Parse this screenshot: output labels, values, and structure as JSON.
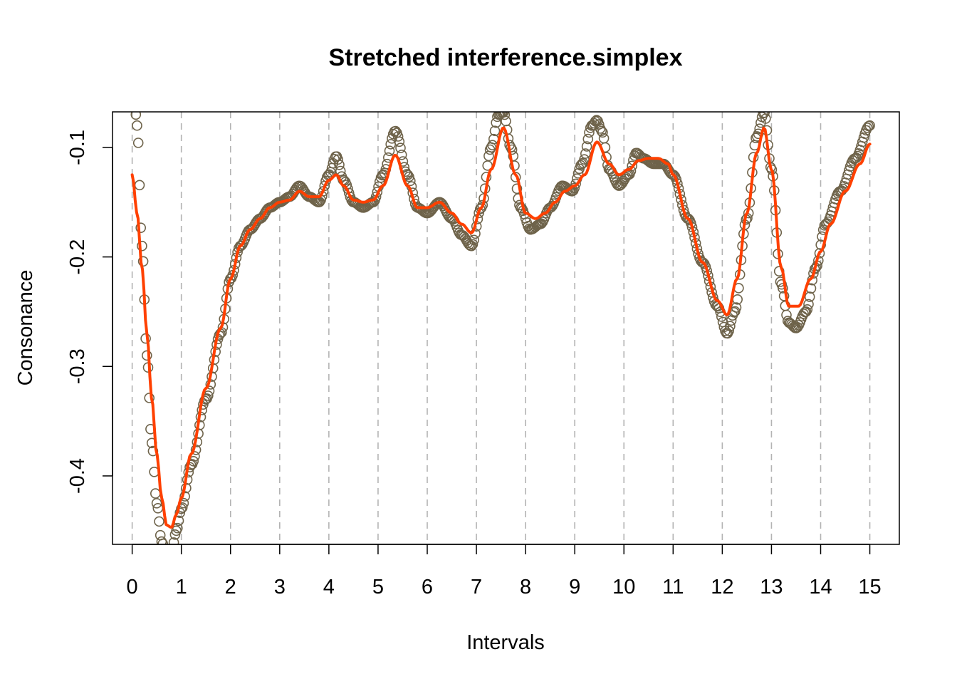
{
  "chart_data": {
    "type": "line",
    "title": "Stretched interference.simplex",
    "xlabel": "Intervals",
    "ylabel": "Consonance",
    "xlim": [
      -0.4,
      15.6
    ],
    "ylim": [
      -0.4625,
      -0.0675
    ],
    "x_ticks": [
      0,
      1,
      2,
      3,
      4,
      5,
      6,
      7,
      8,
      9,
      10,
      11,
      12,
      13,
      14,
      15
    ],
    "x_tick_labels": [
      "0",
      "1",
      "2",
      "3",
      "4",
      "5",
      "6",
      "7",
      "8",
      "9",
      "10",
      "11",
      "12",
      "13",
      "14",
      "15"
    ],
    "y_ticks": [
      -0.4,
      -0.3,
      -0.2,
      -0.1
    ],
    "y_tick_labels": [
      "-0.4",
      "-0.3",
      "-0.2",
      "-0.1"
    ],
    "vlines_at": [
      0,
      1,
      2,
      3,
      4,
      5,
      6,
      7,
      8,
      9,
      10,
      11,
      12,
      13,
      14,
      15
    ],
    "grid": false,
    "legend": "none",
    "colors": {
      "points": "#6e634a",
      "line": "#ff4000",
      "vlines": "#b3b3b3"
    },
    "series": [
      {
        "kind": "points",
        "x": [
          0.05,
          0.1,
          0.2,
          0.3,
          0.4,
          0.5,
          0.6,
          0.7,
          0.8,
          0.9,
          1.0,
          1.2,
          1.5,
          1.8,
          2.0,
          2.2,
          2.4,
          2.6,
          2.8,
          3.0,
          3.2,
          3.4,
          3.6,
          3.8,
          4.0,
          4.15,
          4.3,
          4.5,
          4.7,
          4.9,
          5.1,
          5.35,
          5.6,
          5.8,
          6.0,
          6.25,
          6.5,
          6.7,
          6.9,
          7.1,
          7.3,
          7.45,
          7.55,
          7.7,
          7.9,
          8.1,
          8.3,
          8.5,
          8.75,
          8.95,
          9.15,
          9.35,
          9.45,
          9.55,
          9.7,
          9.9,
          10.1,
          10.25,
          10.4,
          10.6,
          10.8,
          11.0,
          11.3,
          11.6,
          11.9,
          12.1,
          12.25,
          12.5,
          12.7,
          12.85,
          13.0,
          13.2,
          13.35,
          13.5,
          13.7,
          13.9,
          14.1,
          14.4,
          14.7,
          15.0
        ],
        "y": [
          -0.06,
          -0.08,
          -0.19,
          -0.29,
          -0.37,
          -0.425,
          -0.46,
          -0.475,
          -0.47,
          -0.45,
          -0.43,
          -0.39,
          -0.33,
          -0.27,
          -0.22,
          -0.19,
          -0.175,
          -0.165,
          -0.155,
          -0.15,
          -0.145,
          -0.135,
          -0.145,
          -0.15,
          -0.125,
          -0.108,
          -0.13,
          -0.15,
          -0.155,
          -0.15,
          -0.125,
          -0.085,
          -0.125,
          -0.155,
          -0.16,
          -0.15,
          -0.165,
          -0.18,
          -0.19,
          -0.155,
          -0.1,
          -0.07,
          -0.068,
          -0.1,
          -0.155,
          -0.175,
          -0.17,
          -0.155,
          -0.135,
          -0.14,
          -0.115,
          -0.08,
          -0.075,
          -0.085,
          -0.12,
          -0.135,
          -0.125,
          -0.105,
          -0.11,
          -0.115,
          -0.115,
          -0.125,
          -0.165,
          -0.205,
          -0.245,
          -0.27,
          -0.25,
          -0.165,
          -0.09,
          -0.068,
          -0.12,
          -0.225,
          -0.26,
          -0.265,
          -0.25,
          -0.21,
          -0.17,
          -0.14,
          -0.11,
          -0.08
        ]
      },
      {
        "kind": "line",
        "x": [
          0.0,
          0.1,
          0.2,
          0.3,
          0.4,
          0.5,
          0.6,
          0.7,
          0.8,
          0.9,
          1.0,
          1.2,
          1.5,
          1.8,
          2.0,
          2.2,
          2.4,
          2.6,
          2.8,
          3.0,
          3.2,
          3.4,
          3.6,
          3.8,
          4.0,
          4.15,
          4.3,
          4.5,
          4.7,
          4.9,
          5.1,
          5.35,
          5.6,
          5.8,
          6.0,
          6.25,
          6.5,
          6.7,
          6.9,
          7.1,
          7.3,
          7.55,
          7.8,
          8.0,
          8.2,
          8.4,
          8.6,
          8.8,
          9.0,
          9.2,
          9.45,
          9.7,
          9.9,
          10.1,
          10.3,
          10.5,
          10.7,
          10.9,
          11.0,
          11.3,
          11.6,
          11.9,
          12.1,
          12.3,
          12.5,
          12.7,
          12.85,
          13.0,
          13.2,
          13.35,
          13.55,
          13.8,
          14.0,
          14.2,
          14.5,
          14.8,
          15.0
        ],
        "y": [
          -0.125,
          -0.16,
          -0.21,
          -0.27,
          -0.33,
          -0.38,
          -0.42,
          -0.445,
          -0.447,
          -0.435,
          -0.42,
          -0.38,
          -0.32,
          -0.265,
          -0.22,
          -0.19,
          -0.175,
          -0.165,
          -0.155,
          -0.15,
          -0.148,
          -0.14,
          -0.145,
          -0.145,
          -0.13,
          -0.125,
          -0.135,
          -0.148,
          -0.15,
          -0.148,
          -0.135,
          -0.107,
          -0.135,
          -0.155,
          -0.155,
          -0.15,
          -0.16,
          -0.17,
          -0.178,
          -0.155,
          -0.12,
          -0.082,
          -0.125,
          -0.16,
          -0.165,
          -0.16,
          -0.15,
          -0.14,
          -0.135,
          -0.125,
          -0.095,
          -0.115,
          -0.125,
          -0.12,
          -0.112,
          -0.11,
          -0.11,
          -0.115,
          -0.125,
          -0.165,
          -0.205,
          -0.24,
          -0.253,
          -0.22,
          -0.16,
          -0.105,
          -0.082,
          -0.12,
          -0.21,
          -0.245,
          -0.245,
          -0.22,
          -0.195,
          -0.17,
          -0.14,
          -0.115,
          -0.097
        ]
      }
    ]
  }
}
